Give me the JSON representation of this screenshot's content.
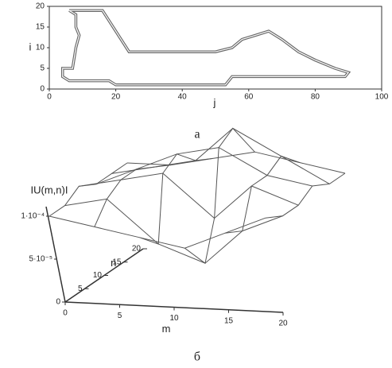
{
  "chart_data": [
    {
      "type": "line",
      "caption": "а",
      "xlabel": "j",
      "ylabel": "i",
      "x": [
        6,
        16,
        24,
        50,
        55,
        58,
        62,
        66,
        70,
        75,
        80,
        86,
        90,
        89,
        55,
        53,
        20,
        18,
        6,
        4,
        4,
        7,
        8,
        9,
        8,
        8,
        6
      ],
      "series": [
        {
          "color": "#666666",
          "values": [
            19,
            19,
            9,
            9,
            10,
            12,
            13,
            14,
            12,
            9,
            7,
            5,
            4,
            3,
            3,
            1,
            1,
            2,
            2,
            3,
            5,
            5,
            10,
            13,
            15,
            18,
            19
          ]
        }
      ],
      "xlim": [
        0,
        100
      ],
      "xticks": [
        0,
        20,
        40,
        60,
        80,
        100
      ],
      "ylim": [
        0,
        20
      ],
      "yticks": [
        0,
        5,
        10,
        15,
        20
      ]
    },
    {
      "type": "surface",
      "caption": "б",
      "xlabel": "m",
      "ylabel": "n",
      "zlabel": "IU(m,n)I",
      "x": [
        0,
        4,
        8,
        12,
        16,
        20
      ],
      "y": [
        0,
        4,
        8,
        12,
        16,
        20
      ],
      "z": [
        [
          0.0001,
          9e-05,
          8e-05,
          7e-05,
          9e-05,
          0.00011
        ],
        [
          0.0001,
          0.00011,
          6e-05,
          4e-05,
          8e-05,
          0.0001
        ],
        [
          0.00011,
          0.00012,
          0.00013,
          8e-05,
          0.00012,
          0.0001
        ],
        [
          0.0001,
          0.00012,
          0.00014,
          0.00015,
          0.00012,
          0.00011
        ],
        [
          0.0001,
          0.00011,
          0.00012,
          0.00016,
          0.00013,
          0.0001
        ],
        [
          0.0001,
          0.0001,
          0.00011,
          0.00012,
          0.00011,
          0.0001
        ]
      ],
      "color": "#555555",
      "xlim": [
        0,
        20
      ],
      "xticks": [
        0,
        5,
        10,
        15,
        20
      ],
      "ylim": [
        0,
        20
      ],
      "yticks": [
        5,
        10,
        15,
        20
      ],
      "zlim": [
        0,
        0.0001
      ],
      "zticks": [
        0,
        {
          "value": 5e-05,
          "label": "5·10⁻⁵"
        },
        {
          "value": 0.0001,
          "label": "1·10⁻⁴"
        }
      ]
    }
  ]
}
